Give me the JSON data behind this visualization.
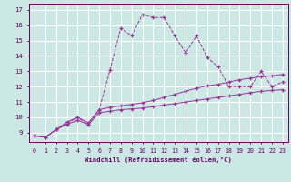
{
  "xlabel": "Windchill (Refroidissement éolien,°C)",
  "bg_color": "#cce8e4",
  "grid_color": "#ffffff",
  "line_color": "#993399",
  "x_ticks": [
    0,
    1,
    2,
    3,
    4,
    5,
    6,
    7,
    8,
    9,
    10,
    11,
    12,
    13,
    14,
    15,
    16,
    17,
    18,
    19,
    20,
    21,
    22,
    23
  ],
  "y_ticks": [
    9,
    10,
    11,
    12,
    13,
    14,
    15,
    16,
    17
  ],
  "xlim": [
    -0.5,
    23.5
  ],
  "ylim": [
    8.4,
    17.4
  ],
  "line_main_y": [
    8.8,
    8.7,
    9.2,
    9.6,
    10.0,
    9.5,
    10.5,
    13.1,
    15.8,
    15.3,
    16.7,
    16.5,
    16.5,
    15.3,
    14.2,
    15.3,
    13.9,
    13.3,
    12.0,
    12.0,
    12.0,
    13.0,
    12.0,
    12.3
  ],
  "line_low_y": [
    8.8,
    8.7,
    9.2,
    9.55,
    9.8,
    9.55,
    10.3,
    10.4,
    10.5,
    10.55,
    10.6,
    10.7,
    10.8,
    10.9,
    11.0,
    11.1,
    11.2,
    11.3,
    11.4,
    11.5,
    11.6,
    11.7,
    11.75,
    11.8
  ],
  "line_high_y": [
    8.8,
    8.7,
    9.2,
    9.7,
    10.0,
    9.65,
    10.5,
    10.65,
    10.75,
    10.85,
    10.95,
    11.1,
    11.3,
    11.5,
    11.7,
    11.9,
    12.05,
    12.15,
    12.3,
    12.45,
    12.55,
    12.65,
    12.7,
    12.8
  ]
}
